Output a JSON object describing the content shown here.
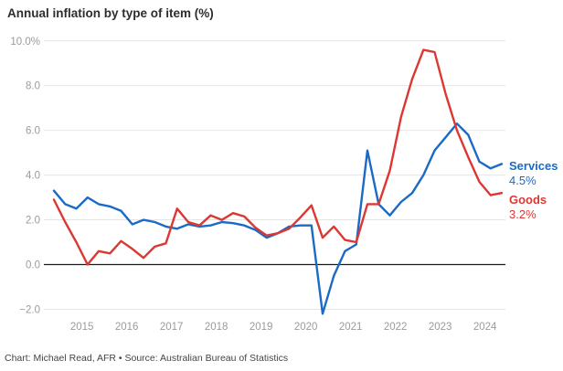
{
  "title": "Annual inflation by type of item (%)",
  "footer": "Chart: Michael Read, AFR • Source: Australian Bureau of Statistics",
  "chart_data": {
    "type": "line",
    "title": "Annual inflation by type of item (%)",
    "x_unit": "quarter",
    "x_start": "2014-Q2",
    "x_end": "2024-Q2",
    "x_tick_labels": [
      "2015",
      "2016",
      "2017",
      "2018",
      "2019",
      "2020",
      "2021",
      "2022",
      "2023",
      "2024"
    ],
    "y_ticks": [
      {
        "label": "10.0%",
        "value": 10
      },
      {
        "label": "8.0",
        "value": 8
      },
      {
        "label": "6.0",
        "value": 6
      },
      {
        "label": "4.0",
        "value": 4
      },
      {
        "label": "2.0",
        "value": 2
      },
      {
        "label": "0.0",
        "value": 0
      },
      {
        "label": "−2.0",
        "value": -2
      }
    ],
    "ylim": [
      -2.8,
      10.4
    ],
    "grid": "horizontal",
    "zero_line": true,
    "grid_color": "#e4e4e4",
    "zero_line_color": "#1a1a1a",
    "axis_label_color": "#9b9b9b",
    "legend_position": "right-end-labels",
    "series": [
      {
        "name": "Services",
        "color": "#1a6ac6",
        "end_label": "Services",
        "end_value_label": "4.5%",
        "values": [
          3.3,
          2.7,
          2.5,
          3.0,
          2.7,
          2.6,
          2.4,
          1.8,
          2.0,
          1.9,
          1.7,
          1.6,
          1.8,
          1.7,
          1.75,
          1.9,
          1.85,
          1.75,
          1.55,
          1.2,
          1.4,
          1.7,
          1.75,
          1.75,
          -2.2,
          -0.5,
          0.6,
          0.9,
          5.1,
          2.7,
          2.2,
          2.8,
          3.2,
          4.0,
          5.1,
          5.7,
          6.3,
          5.8,
          4.6,
          4.3,
          4.5
        ]
      },
      {
        "name": "Goods",
        "color": "#dc3732",
        "end_label": "Goods",
        "end_value_label": "3.2%",
        "values": [
          2.9,
          1.9,
          1.0,
          0.0,
          0.6,
          0.5,
          1.05,
          0.7,
          0.3,
          0.8,
          0.95,
          2.5,
          1.9,
          1.75,
          2.2,
          2.0,
          2.3,
          2.15,
          1.65,
          1.3,
          1.4,
          1.6,
          2.1,
          2.65,
          1.2,
          1.7,
          1.1,
          1.0,
          2.7,
          2.7,
          4.2,
          6.6,
          8.3,
          9.6,
          9.5,
          7.6,
          6.0,
          4.8,
          3.7,
          3.1,
          3.2
        ]
      }
    ]
  }
}
